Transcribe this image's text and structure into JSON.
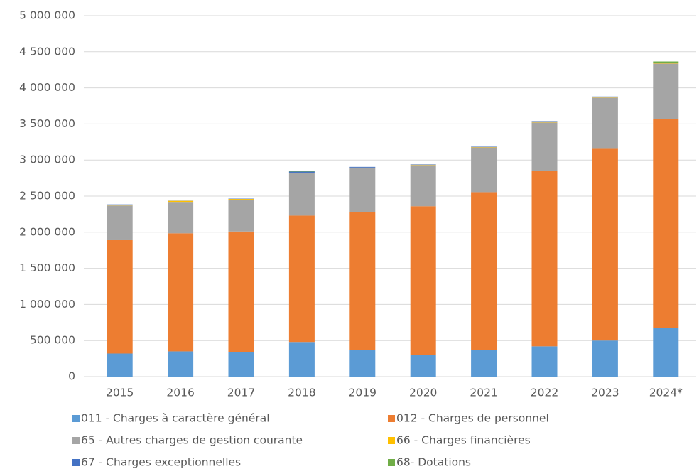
{
  "chart_data": {
    "type": "stacked_bar",
    "categories": [
      "2015",
      "2016",
      "2017",
      "2018",
      "2019",
      "2020",
      "2021",
      "2022",
      "2023",
      "2024*"
    ],
    "series": [
      {
        "name": "011 - Charges à caractère général",
        "color": "#5b9bd5",
        "values": [
          320000,
          350000,
          340000,
          480000,
          370000,
          300000,
          370000,
          420000,
          500000,
          670000
        ]
      },
      {
        "name": "012 - Charges de personnel",
        "color": "#ed7d31",
        "values": [
          1570000,
          1635000,
          1670000,
          1750000,
          1910000,
          2060000,
          2185000,
          2430000,
          2665000,
          2895000
        ]
      },
      {
        "name": "65 - Autres charges de gestion courante",
        "color": "#a5a5a5",
        "values": [
          480000,
          435000,
          440000,
          590000,
          610000,
          570000,
          620000,
          670000,
          700000,
          770000
        ]
      },
      {
        "name": "66 - Charges financières",
        "color": "#ffc000",
        "values": [
          12000,
          15000,
          10000,
          5000,
          5000,
          5000,
          5000,
          15000,
          10000,
          5000
        ]
      },
      {
        "name": "67 - Charges exceptionnelles",
        "color": "#4472c4",
        "values": [
          3000,
          2000,
          5000,
          15000,
          10000,
          5000,
          5000,
          5000,
          5000,
          5000
        ]
      },
      {
        "name": "68- Dotations",
        "color": "#70ad47",
        "values": [
          0,
          0,
          0,
          5000,
          0,
          0,
          0,
          0,
          0,
          20000
        ]
      }
    ],
    "ylim": [
      0,
      5000000
    ],
    "yticks": [
      0,
      {
        "value": 500000,
        "label": "500 000"
      },
      {
        "value": 1000000,
        "label": "1 000 000"
      },
      {
        "value": 1500000,
        "label": "1 500 000"
      },
      {
        "value": 2000000,
        "label": "2 000 000"
      },
      {
        "value": 2500000,
        "label": "2 500 000"
      },
      {
        "value": 3000000,
        "label": "3 000 000"
      },
      {
        "value": 3500000,
        "label": "3 500 000"
      },
      {
        "value": 4000000,
        "label": "4 000 000"
      },
      {
        "value": 4500000,
        "label": "4 500 000"
      },
      {
        "value": 5000000,
        "label": "5 000 000"
      }
    ],
    "grid": true
  }
}
